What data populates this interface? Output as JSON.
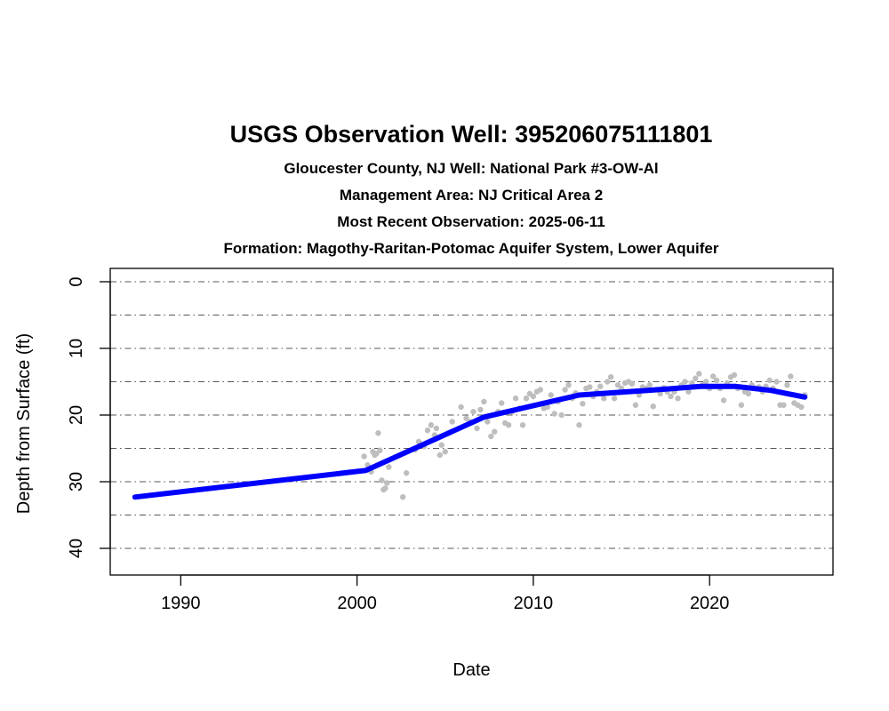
{
  "chart_data": {
    "type": "scatter",
    "title": "USGS Observation Well:  395206075111801",
    "subtitle_lines": [
      "Gloucester County, NJ    Well: National Park #3-OW-Al",
      "Management Area: NJ Critical Area 2",
      "Most Recent Observation: 2025-06-11",
      "Formation: Magothy-Raritan-Potomac Aquifer System, Lower Aquifer"
    ],
    "xlabel": "Date",
    "ylabel": "Depth from Surface (ft)",
    "xlim": [
      1986,
      2027
    ],
    "ylim": [
      44,
      -2
    ],
    "y_reversed": true,
    "x_ticks": [
      1990,
      2000,
      2010,
      2020
    ],
    "y_ticks": [
      0,
      10,
      20,
      30,
      40
    ],
    "gridlines_y": [
      0,
      5,
      10,
      15,
      20,
      25,
      30,
      35,
      40
    ],
    "grid_style": "dash-dot horizontal",
    "colors": {
      "points": "#bebebe",
      "trend": "#0000ff",
      "grid": "#555555"
    },
    "series": [
      {
        "kind": "observations",
        "x": [
          2000.4,
          2000.6,
          2000.8,
          2000.9,
          2001.0,
          2001.1,
          2001.2,
          2001.3,
          2001.4,
          2001.5,
          2001.6,
          2001.7,
          2001.8,
          2002.6,
          2002.8,
          2003.3,
          2003.5,
          2003.8,
          2004.0,
          2004.2,
          2004.4,
          2004.5,
          2004.7,
          2004.8,
          2005.0,
          2005.2,
          2005.4,
          2005.9,
          2006.2,
          2006.4,
          2006.6,
          2006.8,
          2007.0,
          2007.2,
          2007.4,
          2007.6,
          2007.8,
          2008.0,
          2008.2,
          2008.4,
          2008.6,
          2008.8,
          2009.0,
          2009.2,
          2009.4,
          2009.6,
          2009.8,
          2010.0,
          2010.2,
          2010.4,
          2010.6,
          2010.8,
          2011.0,
          2011.2,
          2011.4,
          2011.6,
          2011.8,
          2012.0,
          2012.2,
          2012.4,
          2012.6,
          2012.8,
          2013.0,
          2013.2,
          2013.4,
          2013.6,
          2013.8,
          2014.0,
          2014.2,
          2014.4,
          2014.6,
          2014.8,
          2015.0,
          2015.2,
          2015.4,
          2015.6,
          2015.8,
          2016.0,
          2016.2,
          2016.4,
          2016.6,
          2016.8,
          2017.0,
          2017.2,
          2017.4,
          2017.6,
          2017.8,
          2018.0,
          2018.2,
          2018.4,
          2018.6,
          2018.8,
          2019.0,
          2019.2,
          2019.4,
          2019.6,
          2019.8,
          2020.0,
          2020.2,
          2020.4,
          2020.6,
          2020.8,
          2021.0,
          2021.2,
          2021.4,
          2021.6,
          2021.8,
          2022.0,
          2022.2,
          2022.4,
          2022.6,
          2022.8,
          2023.0,
          2023.2,
          2023.4,
          2023.6,
          2023.8,
          2024.0,
          2024.2,
          2024.4,
          2024.6,
          2024.8,
          2025.0,
          2025.2,
          2025.4
        ],
        "y": [
          26.2,
          27.5,
          28.5,
          25.5,
          26.0,
          25.8,
          22.7,
          25.3,
          29.8,
          31.2,
          31.0,
          30.2,
          27.8,
          32.3,
          28.7,
          25.2,
          24.0,
          24.7,
          22.3,
          21.5,
          23.0,
          22.0,
          26.0,
          24.5,
          25.5,
          22.7,
          21.0,
          18.8,
          20.5,
          21.0,
          19.5,
          22.0,
          19.2,
          18.0,
          21.0,
          23.2,
          22.5,
          19.5,
          18.2,
          21.2,
          21.5,
          19.5,
          17.5,
          19.0,
          21.5,
          17.5,
          16.8,
          17.2,
          16.5,
          16.2,
          19.0,
          18.8,
          17.0,
          19.8,
          18.0,
          20.0,
          16.2,
          15.5,
          17.5,
          16.7,
          21.5,
          18.3,
          16.0,
          15.8,
          17.2,
          16.5,
          15.7,
          17.5,
          15.0,
          14.3,
          17.5,
          15.5,
          16.0,
          15.2,
          15.0,
          15.3,
          18.5,
          17.0,
          15.8,
          16.0,
          15.5,
          18.7,
          16.2,
          16.8,
          15.9,
          16.5,
          17.2,
          16.5,
          17.5,
          15.5,
          15.0,
          16.5,
          15.2,
          14.5,
          13.8,
          15.5,
          15.0,
          16.0,
          14.2,
          14.8,
          16.0,
          17.8,
          15.2,
          14.3,
          14.0,
          16.0,
          18.5,
          16.5,
          16.8,
          15.5,
          16.0,
          15.8,
          16.5,
          15.7,
          14.8,
          16.0,
          15.0,
          18.5,
          18.5,
          15.5,
          14.2,
          18.2,
          18.5,
          18.8,
          17.0
        ]
      },
      {
        "kind": "trend",
        "x": [
          1987.4,
          2000.5,
          2007.2,
          2012.6,
          2016.5,
          2019.5,
          2021.5,
          2023.5,
          2025.4
        ],
        "y": [
          32.3,
          28.3,
          20.3,
          17.0,
          16.3,
          15.7,
          15.7,
          16.3,
          17.3
        ]
      }
    ]
  }
}
